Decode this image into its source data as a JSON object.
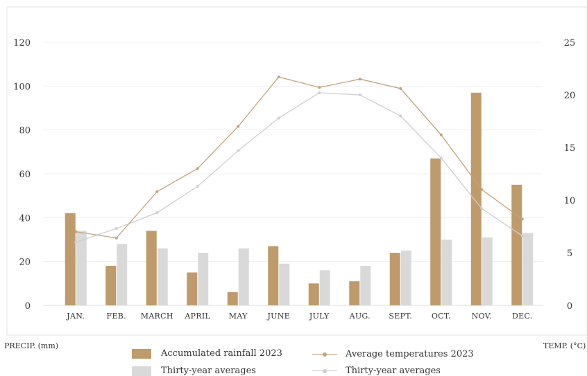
{
  "chart_data": {
    "type": "bar",
    "categories": [
      "JAN.",
      "FEB.",
      "MARCH",
      "APRIL",
      "MAY",
      "JUNE",
      "JULY",
      "AUG.",
      "SEPT.",
      "OCT.",
      "NOV.",
      "DEC."
    ],
    "series": [
      {
        "name": "Accumulated rainfall 2023",
        "kind": "bar",
        "axis": "left",
        "values": [
          42,
          18,
          34,
          15,
          6,
          27,
          10,
          11,
          24,
          67,
          97,
          55
        ],
        "color": "#bf9a6a"
      },
      {
        "name": "Thirty-year averages",
        "kind": "bar",
        "axis": "left",
        "values": [
          34,
          28,
          26,
          24,
          26,
          19,
          16,
          18,
          25,
          30,
          31,
          33
        ],
        "color": "#d9d9d9"
      },
      {
        "name": "Average temperatures 2023",
        "kind": "line",
        "axis": "right",
        "values": [
          7.0,
          6.4,
          10.8,
          13.0,
          17.0,
          21.7,
          20.7,
          21.5,
          20.6,
          16.2,
          11.0,
          8.2
        ],
        "color": "#c4a27a"
      },
      {
        "name": "Thirty-year averages",
        "kind": "line",
        "axis": "right",
        "values": [
          6.0,
          7.3,
          8.8,
          11.3,
          14.7,
          17.8,
          20.2,
          20.0,
          18.0,
          14.0,
          9.2,
          6.6
        ],
        "color": "#cfcfcf"
      }
    ],
    "ylim_left": [
      0,
      120
    ],
    "yticks_left": [
      0,
      20,
      40,
      60,
      80,
      100,
      120
    ],
    "ylim_right": [
      0,
      25
    ],
    "yticks_right": [
      0,
      5,
      10,
      15,
      20,
      25
    ],
    "ylabel_left": "PRECIP. (mm)",
    "ylabel_right": "TEMP. (°C)",
    "grid": true,
    "legend_position": "bottom"
  }
}
